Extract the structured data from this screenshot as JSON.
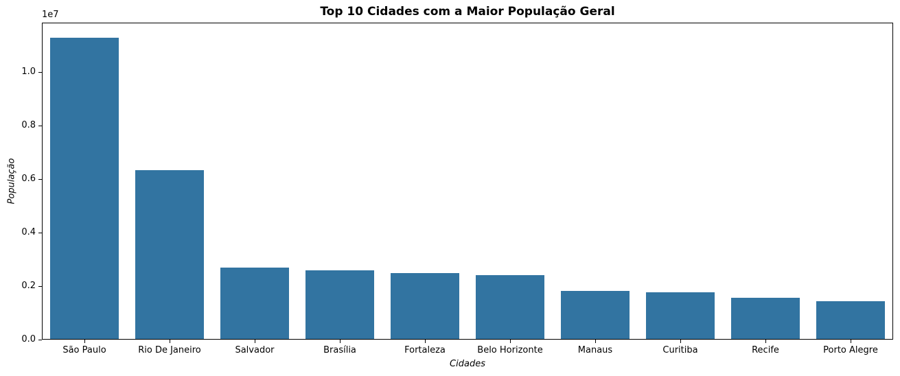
{
  "chart_data": {
    "type": "bar",
    "title": "Top 10 Cidades com a Maior População Geral",
    "xlabel": "Cidades",
    "ylabel": "População",
    "y_offset_label": "1e7",
    "categories": [
      "São Paulo",
      "Rio De Janeiro",
      "Salvador",
      "Brasília",
      "Fortaleza",
      "Belo Horizonte",
      "Manaus",
      "Curitiba",
      "Recife",
      "Porto Alegre"
    ],
    "values": [
      11253503,
      6320446,
      2675656,
      2570160,
      2452185,
      2375151,
      1802014,
      1751907,
      1537704,
      1409351
    ],
    "yticks": [
      "0.0",
      "0.2",
      "0.4",
      "0.6",
      "0.8",
      "1.0"
    ],
    "ytick_values": [
      0,
      2000000,
      4000000,
      6000000,
      8000000,
      10000000
    ],
    "ylim": [
      0,
      11846000
    ],
    "bar_color": "#3274a1",
    "grid": false,
    "legend": null
  }
}
